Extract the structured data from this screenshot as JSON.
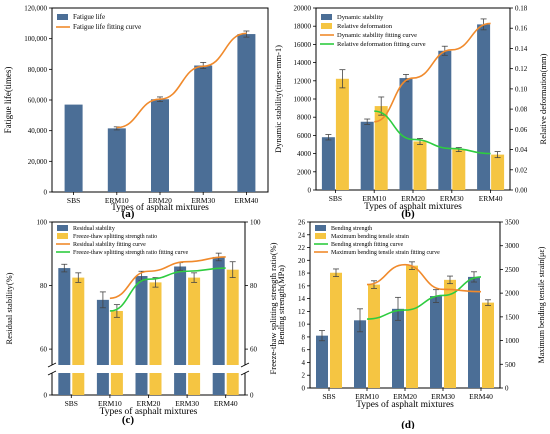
{
  "colors": {
    "bar_blue": "#4b6e96",
    "bar_yellow": "#f5c542",
    "fit_orange": "#f08a2c",
    "fit_green": "#2ecc40",
    "error": "#444444"
  },
  "chart_data": [
    {
      "panel": "(a)",
      "type": "bar",
      "xlabel": "Types of asphalt mixtures",
      "ylabel": "Fatigue life(times)",
      "categories": [
        "SBS",
        "ERM10",
        "ERM20",
        "ERM30",
        "ERM40"
      ],
      "ylim": [
        0,
        120000
      ],
      "yticks": [
        0,
        20000,
        40000,
        60000,
        80000,
        100000,
        120000
      ],
      "ytick_labels": [
        "0",
        "20,000",
        "40,000",
        "60,000",
        "80,000",
        "100,000",
        "120,000"
      ],
      "legend_position": "top-left",
      "series": [
        {
          "name": "Fatigue life",
          "kind": "bar",
          "color": "#4b6e96",
          "values": [
            57000,
            41500,
            60500,
            82500,
            103000
          ],
          "errors": [
            0,
            1000,
            1500,
            2000,
            2000
          ]
        },
        {
          "name": "Fatigue life fitting curve",
          "kind": "line",
          "color": "#f08a2c",
          "x": [
            "ERM10",
            "ERM20",
            "ERM30",
            "ERM40"
          ],
          "values": [
            42000,
            60500,
            82000,
            103500
          ]
        }
      ]
    },
    {
      "panel": "(b)",
      "type": "bar",
      "xlabel": "Types of asphalt mixtures",
      "ylabel": "Dynamic stability(times·mm-1)",
      "y2label": "Relative deformation(mm)",
      "categories": [
        "SBS",
        "ERM10",
        "ERM20",
        "ERM30",
        "ERM40"
      ],
      "ylim": [
        0,
        20000
      ],
      "yticks": [
        0,
        2000,
        4000,
        6000,
        8000,
        10000,
        12000,
        14000,
        16000,
        18000,
        20000
      ],
      "ytick_labels": [
        "0",
        "2000",
        "4000",
        "6000",
        "8000",
        "10000",
        "12000",
        "14000",
        "16000",
        "18000",
        "20000"
      ],
      "y2lim": [
        0,
        0.18
      ],
      "y2ticks": [
        0,
        0.02,
        0.04,
        0.06,
        0.08,
        0.1,
        0.12,
        0.14,
        0.16,
        0.18
      ],
      "y2tick_labels": [
        "0.00",
        "0.02",
        "0.04",
        "0.06",
        "0.08",
        "0.10",
        "0.12",
        "0.14",
        "0.16",
        "0.18"
      ],
      "legend_position": "top-left",
      "series": [
        {
          "name": "Dynamic stability",
          "kind": "bar",
          "axis": "left",
          "color": "#4b6e96",
          "values": [
            5800,
            7500,
            12300,
            15300,
            18200
          ],
          "errors": [
            300,
            300,
            400,
            500,
            600
          ]
        },
        {
          "name": "Relative deformation",
          "kind": "bar",
          "axis": "right",
          "color": "#f5c542",
          "values": [
            0.11,
            0.083,
            0.048,
            0.04,
            0.035
          ],
          "errors": [
            0.009,
            0.009,
            0.003,
            0.002,
            0.003
          ]
        },
        {
          "name": "Dynamic stability fitting curve",
          "kind": "line",
          "axis": "left",
          "color": "#f08a2c",
          "x": [
            "ERM10",
            "ERM20",
            "ERM30",
            "ERM40"
          ],
          "values": [
            7500,
            12300,
            15400,
            18300
          ]
        },
        {
          "name": "Relative deformation fitting curve",
          "kind": "line",
          "axis": "right",
          "color": "#2ecc40",
          "x": [
            "ERM10",
            "ERM20",
            "ERM30",
            "ERM40"
          ],
          "values": [
            0.078,
            0.05,
            0.041,
            0.036
          ]
        }
      ]
    },
    {
      "panel": "(c)",
      "type": "bar",
      "xlabel": "Types of asphalt mixtures",
      "ylabel": "Residual stability(%)",
      "y2label": "Freeze-thaw splitting strength ratio(%)",
      "categories": [
        "SBS",
        "ERM10",
        "ERM20",
        "ERM30",
        "ERM40"
      ],
      "broken_axis": {
        "lower": [
          0,
          10
        ],
        "upper": [
          55,
          100
        ]
      },
      "yticks": [
        0,
        60,
        80,
        100
      ],
      "ytick_labels": [
        "0",
        "60",
        "80",
        "100"
      ],
      "y2ticks": [
        0,
        60,
        80,
        100
      ],
      "y2tick_labels": [
        "0",
        "60",
        "80",
        "100"
      ],
      "legend_position": "top-left",
      "series": [
        {
          "name": "Residual stability",
          "kind": "bar",
          "color": "#4b6e96",
          "values": [
            85.5,
            75.5,
            83,
            86,
            89
          ],
          "errors": [
            1.2,
            2.5,
            1.5,
            1.2,
            1.2
          ]
        },
        {
          "name": "Freeze-thaw splitting strength ratio",
          "kind": "bar",
          "color": "#f5c542",
          "values": [
            82.5,
            72,
            81,
            82.5,
            85
          ],
          "errors": [
            1.5,
            2,
            1.5,
            1.5,
            2.5
          ]
        },
        {
          "name": "Residual stability fitting curve",
          "kind": "line",
          "color": "#f08a2c",
          "x": [
            "ERM10",
            "ERM20",
            "ERM30",
            "ERM40"
          ],
          "values": [
            76,
            84.5,
            87.5,
            89
          ]
        },
        {
          "name": "Freeze-thaw splitting strength ratio fitting curve",
          "kind": "line",
          "color": "#2ecc40",
          "x": [
            "ERM10",
            "ERM20",
            "ERM30",
            "ERM40"
          ],
          "values": [
            72,
            82,
            84.5,
            85.5
          ]
        }
      ]
    },
    {
      "panel": "(d)",
      "type": "bar",
      "xlabel": "Types of asphalt mixtures",
      "ylabel": "Bending strength(MPa)",
      "y2label": "Maximum bending tensile strain(με)",
      "categories": [
        "SBS",
        "ERM10",
        "ERM20",
        "ERM30",
        "ERM40"
      ],
      "ylim": [
        0,
        26
      ],
      "yticks": [
        0,
        2,
        4,
        6,
        8,
        10,
        12,
        14,
        16,
        18,
        20,
        22,
        24,
        26
      ],
      "ytick_labels": [
        "0",
        "2",
        "4",
        "6",
        "8",
        "10",
        "12",
        "14",
        "16",
        "18",
        "20",
        "22",
        "24",
        "26"
      ],
      "y2lim": [
        0,
        3500
      ],
      "y2ticks": [
        0,
        500,
        1000,
        1500,
        2000,
        2500,
        3000,
        3500
      ],
      "y2tick_labels": [
        "0",
        "500",
        "1000",
        "1500",
        "2000",
        "2500",
        "3000",
        "3500"
      ],
      "legend_position": "top-left",
      "series": [
        {
          "name": "Bending strength",
          "kind": "bar",
          "axis": "left",
          "color": "#4b6e96",
          "values": [
            8.2,
            10.6,
            12.4,
            14.4,
            17.4
          ],
          "errors": [
            0.8,
            1.8,
            1.8,
            1,
            0.8
          ]
        },
        {
          "name": "Maximum bending tensile strain",
          "kind": "bar",
          "axis": "right",
          "color": "#f5c542",
          "values": [
            2430,
            2180,
            2580,
            2280,
            1800
          ],
          "errors": [
            80,
            80,
            80,
            80,
            60
          ]
        },
        {
          "name": "Bending strength fitting curve",
          "kind": "line",
          "axis": "left",
          "color": "#2ecc40",
          "x": [
            "ERM10",
            "ERM20",
            "ERM30",
            "ERM40"
          ],
          "values": [
            10.8,
            12.2,
            14.5,
            17.4
          ]
        },
        {
          "name": "Maximum bending tensile strain fitting curve",
          "kind": "line",
          "axis": "right",
          "color": "#f08a2c",
          "x": [
            "ERM10",
            "ERM20",
            "ERM30",
            "ERM40"
          ],
          "values": [
            2180,
            2600,
            2080,
            2030
          ]
        }
      ]
    }
  ]
}
